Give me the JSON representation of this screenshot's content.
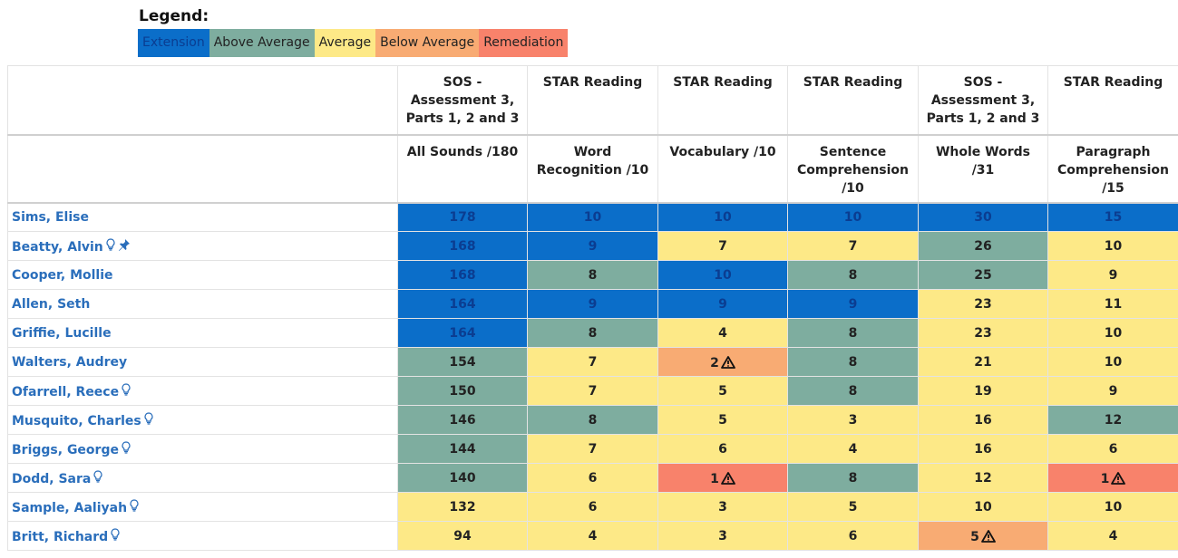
{
  "legend": {
    "title": "Legend:",
    "items": [
      {
        "key": "ext",
        "label": "Extension",
        "color": "#0b6ec9",
        "text": "#0b3d91"
      },
      {
        "key": "above",
        "label": "Above Average",
        "color": "#7ead9f",
        "text": "#222222"
      },
      {
        "key": "avg",
        "label": "Average",
        "color": "#fde987",
        "text": "#222222"
      },
      {
        "key": "below",
        "label": "Below Average",
        "color": "#f8ab73",
        "text": "#222222"
      },
      {
        "key": "rem",
        "label": "Remediation",
        "color": "#f8826b",
        "text": "#222222"
      }
    ]
  },
  "columns": [
    {
      "test": "SOS - Assessment 3, Parts 1, 2 and 3",
      "measure": "All Sounds /180"
    },
    {
      "test": "STAR Reading",
      "measure": "Word Recognition /10"
    },
    {
      "test": "STAR Reading",
      "measure": "Vocabulary /10"
    },
    {
      "test": "STAR Reading",
      "measure": "Sentence Comprehension /10"
    },
    {
      "test": "SOS - Assessment 3, Parts 1, 2 and 3",
      "measure": "Whole Words /31"
    },
    {
      "test": "STAR Reading",
      "measure": "Paragraph Comprehension /15"
    }
  ],
  "students": [
    {
      "name": "Sims, Elise",
      "icons": [],
      "scores": [
        [
          178,
          "ext"
        ],
        [
          10,
          "ext"
        ],
        [
          10,
          "ext"
        ],
        [
          10,
          "ext"
        ],
        [
          30,
          "ext"
        ],
        [
          15,
          "ext"
        ]
      ]
    },
    {
      "name": "Beatty, Alvin",
      "icons": [
        "lightbulb-icon",
        "pin-icon"
      ],
      "scores": [
        [
          168,
          "ext"
        ],
        [
          9,
          "ext"
        ],
        [
          7,
          "avg"
        ],
        [
          7,
          "avg"
        ],
        [
          26,
          "above"
        ],
        [
          10,
          "avg"
        ]
      ]
    },
    {
      "name": "Cooper, Mollie",
      "icons": [],
      "scores": [
        [
          168,
          "ext"
        ],
        [
          8,
          "above"
        ],
        [
          10,
          "ext"
        ],
        [
          8,
          "above"
        ],
        [
          25,
          "above"
        ],
        [
          9,
          "avg"
        ]
      ]
    },
    {
      "name": "Allen, Seth",
      "icons": [],
      "scores": [
        [
          164,
          "ext"
        ],
        [
          9,
          "ext"
        ],
        [
          9,
          "ext"
        ],
        [
          9,
          "ext"
        ],
        [
          23,
          "avg"
        ],
        [
          11,
          "avg"
        ]
      ]
    },
    {
      "name": "Griffie, Lucille",
      "icons": [],
      "scores": [
        [
          164,
          "ext"
        ],
        [
          8,
          "above"
        ],
        [
          4,
          "avg"
        ],
        [
          8,
          "above"
        ],
        [
          23,
          "avg"
        ],
        [
          10,
          "avg"
        ]
      ]
    },
    {
      "name": "Walters, Audrey",
      "icons": [],
      "scores": [
        [
          154,
          "above"
        ],
        [
          7,
          "avg"
        ],
        [
          2,
          "below",
          true
        ],
        [
          8,
          "above"
        ],
        [
          21,
          "avg"
        ],
        [
          10,
          "avg"
        ]
      ]
    },
    {
      "name": "Ofarrell, Reece",
      "icons": [
        "lightbulb-icon"
      ],
      "scores": [
        [
          150,
          "above"
        ],
        [
          7,
          "avg"
        ],
        [
          5,
          "avg"
        ],
        [
          8,
          "above"
        ],
        [
          19,
          "avg"
        ],
        [
          9,
          "avg"
        ]
      ]
    },
    {
      "name": "Musquito, Charles",
      "icons": [
        "lightbulb-icon"
      ],
      "scores": [
        [
          146,
          "above"
        ],
        [
          8,
          "above"
        ],
        [
          5,
          "avg"
        ],
        [
          3,
          "avg"
        ],
        [
          16,
          "avg"
        ],
        [
          12,
          "above"
        ]
      ]
    },
    {
      "name": "Briggs, George",
      "icons": [
        "lightbulb-icon"
      ],
      "scores": [
        [
          144,
          "above"
        ],
        [
          7,
          "avg"
        ],
        [
          6,
          "avg"
        ],
        [
          4,
          "avg"
        ],
        [
          16,
          "avg"
        ],
        [
          6,
          "avg"
        ]
      ]
    },
    {
      "name": "Dodd, Sara",
      "icons": [
        "lightbulb-icon"
      ],
      "scores": [
        [
          140,
          "above"
        ],
        [
          6,
          "avg"
        ],
        [
          1,
          "rem",
          true
        ],
        [
          8,
          "above"
        ],
        [
          12,
          "avg"
        ],
        [
          1,
          "rem",
          true
        ]
      ]
    },
    {
      "name": "Sample, Aaliyah",
      "icons": [
        "lightbulb-icon"
      ],
      "scores": [
        [
          132,
          "avg"
        ],
        [
          6,
          "avg"
        ],
        [
          3,
          "avg"
        ],
        [
          5,
          "avg"
        ],
        [
          10,
          "avg"
        ],
        [
          10,
          "avg"
        ]
      ]
    },
    {
      "name": "Britt, Richard",
      "icons": [
        "lightbulb-icon"
      ],
      "scores": [
        [
          94,
          "avg"
        ],
        [
          4,
          "avg"
        ],
        [
          3,
          "avg"
        ],
        [
          6,
          "avg"
        ],
        [
          5,
          "below",
          true
        ],
        [
          4,
          "avg"
        ]
      ]
    }
  ]
}
